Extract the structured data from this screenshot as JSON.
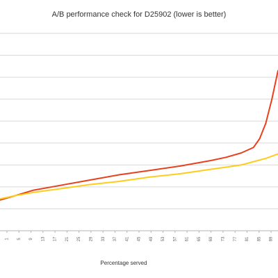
{
  "chart_data": {
    "type": "line",
    "title": "A/B performance check for D25902 (lower is better)",
    "xlabel": "Percentage served",
    "ylabel": "",
    "grid": true,
    "legend": "none",
    "x_ticks": [
      "1",
      "5",
      "9",
      "13",
      "17",
      "21",
      "25",
      "29",
      "33",
      "37",
      "41",
      "45",
      "49",
      "53",
      "57",
      "61",
      "65",
      "69",
      "73",
      "77",
      "81",
      "85",
      "89"
    ],
    "xlim": [
      1,
      92
    ],
    "ylim": [
      0,
      9
    ],
    "series": [
      {
        "color": "#e8401c",
        "x": [
          1,
          6,
          12,
          20,
          30,
          40,
          50,
          60,
          70,
          75,
          80,
          84,
          86,
          88,
          90,
          92
        ],
        "y": [
          1.4,
          1.6,
          1.85,
          2.05,
          2.3,
          2.55,
          2.75,
          2.95,
          3.2,
          3.35,
          3.55,
          3.8,
          4.2,
          4.9,
          6.0,
          7.3
        ]
      },
      {
        "color": "#ffcc1a",
        "x": [
          1,
          6,
          12,
          20,
          30,
          40,
          50,
          60,
          70,
          75,
          80,
          84,
          88,
          92
        ],
        "y": [
          1.45,
          1.6,
          1.75,
          1.9,
          2.1,
          2.25,
          2.45,
          2.6,
          2.8,
          2.9,
          3.0,
          3.15,
          3.3,
          3.5
        ]
      }
    ]
  }
}
